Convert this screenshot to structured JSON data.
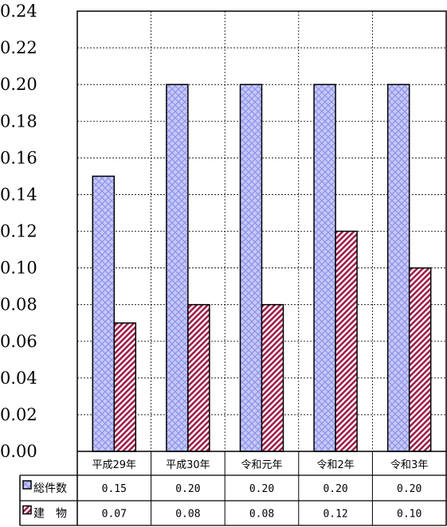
{
  "chart_data": {
    "type": "bar",
    "categories": [
      "平成29年",
      "平成30年",
      "令和元年",
      "令和2年",
      "令和3年"
    ],
    "series": [
      {
        "name": "総件数",
        "values": [
          0.15,
          0.2,
          0.2,
          0.2,
          0.2
        ],
        "value_labels": [
          "0.15",
          "0.20",
          "0.20",
          "0.20",
          "0.20"
        ],
        "color": "#aab0f2",
        "pattern": "crosshatch"
      },
      {
        "name": "建　物",
        "values": [
          0.07,
          0.08,
          0.08,
          0.12,
          0.1
        ],
        "value_labels": [
          "0.07",
          "0.08",
          "0.08",
          "0.12",
          "0.10"
        ],
        "color": "#a0204a",
        "pattern": "diagonal-stripe"
      }
    ],
    "y_ticks": [
      "0.00",
      "0.02",
      "0.04",
      "0.06",
      "0.08",
      "0.10",
      "0.12",
      "0.14",
      "0.16",
      "0.18",
      "0.20",
      "0.22",
      "0.24"
    ],
    "ylim": [
      0,
      0.24
    ],
    "grid": true,
    "legend": "data-table-left"
  }
}
